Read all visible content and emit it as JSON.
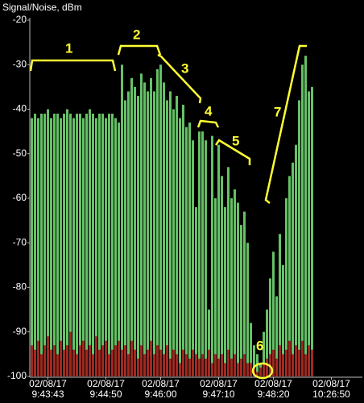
{
  "chart_data": {
    "type": "bar",
    "y_label": "Signal/Noise, dBm",
    "categories": [
      null,
      null,
      null,
      null,
      null,
      "02/08/17 9:43:43",
      null,
      null,
      null,
      null,
      null,
      null,
      null,
      null,
      null,
      null,
      null,
      null,
      null,
      null,
      null,
      null,
      null,
      "02/08/17 9:44:50",
      null,
      null,
      null,
      null,
      null,
      null,
      null,
      null,
      null,
      null,
      null,
      null,
      null,
      null,
      null,
      null,
      "02/08/17 9:46:00",
      null,
      null,
      null,
      null,
      null,
      null,
      null,
      null,
      null,
      null,
      null,
      null,
      null,
      null,
      null,
      null,
      null,
      "02/08/17 9:47:10",
      null,
      null,
      null,
      null,
      null,
      null,
      null,
      null,
      null,
      null,
      null,
      null,
      null,
      null,
      null,
      null,
      "02/08/17 9:48:20",
      null,
      null,
      null,
      null,
      null,
      null,
      null,
      null,
      null,
      null,
      null,
      null,
      null,
      null,
      null,
      null,
      null,
      "02/08/17 10:26:50",
      null,
      null,
      null,
      null,
      null,
      null,
      null,
      null,
      null,
      null
    ],
    "series": [
      {
        "name": "Signal",
        "color": "#66c166",
        "values": [
          -42,
          -41,
          -42,
          -41,
          -41,
          -40,
          -42,
          -41,
          -41,
          -42,
          -41,
          -40,
          -41,
          -42,
          -41,
          -41,
          -42,
          -41,
          -40,
          -41,
          -42,
          -41,
          -41,
          -42,
          -41,
          -41,
          -42,
          -43,
          -30,
          -38,
          -36,
          -33,
          -35,
          -37,
          -32,
          -34,
          -36,
          -33,
          -36,
          -31,
          -30,
          -34,
          -38,
          -36,
          -40,
          -37,
          -42,
          -39,
          -44,
          -43,
          -47,
          -62,
          -45,
          -45,
          -47,
          -85,
          -46,
          -60,
          -48,
          -55,
          -62,
          -53,
          -60,
          -58,
          -61,
          -66,
          -63,
          -70,
          -88,
          -93,
          -95,
          -97,
          -90,
          -85,
          -78,
          -72,
          -82,
          -68,
          -75,
          -60,
          -55,
          -52,
          -48,
          -38,
          -30,
          -28,
          -36,
          -35,
          null,
          null,
          null,
          null,
          null,
          null,
          null,
          null,
          null,
          null,
          null,
          null,
          null,
          null,
          null,
          null
        ]
      },
      {
        "name": "Noise",
        "color": "#9e2a22",
        "values": [
          -93,
          -94,
          -92,
          -95,
          -93,
          -91,
          -94,
          -93,
          -95,
          -92,
          -94,
          -93,
          -90,
          -94,
          -95,
          -93,
          -92,
          -94,
          -93,
          -95,
          -91,
          -94,
          -93,
          -92,
          -95,
          -94,
          -93,
          -92,
          -94,
          -93,
          -95,
          -92,
          -94,
          -96,
          -93,
          -95,
          -94,
          -92,
          -95,
          -93,
          -94,
          -95,
          -93,
          -96,
          -94,
          -95,
          -97,
          -94,
          -95,
          -96,
          -94,
          -95,
          -96,
          -95,
          -96,
          -94,
          -97,
          -95,
          -96,
          -95,
          -97,
          -94,
          -96,
          -95,
          -97,
          -96,
          -95,
          -97,
          -97,
          -98,
          -99,
          -98,
          -97,
          -96,
          -95,
          -94,
          -96,
          -93,
          -95,
          -94,
          -92,
          -95,
          -93,
          -94,
          -92,
          -95,
          -93,
          -94,
          null,
          null,
          null,
          null,
          null,
          null,
          null,
          null,
          null,
          null,
          null,
          null,
          null,
          null,
          null,
          null
        ]
      }
    ],
    "ylim": [
      -100,
      -20
    ],
    "yticks": [
      -20,
      -30,
      -40,
      -50,
      -60,
      -70,
      -80,
      -90,
      -100
    ],
    "annotations": [
      "1",
      "2",
      "3",
      "4",
      "5",
      "6",
      "7"
    ]
  }
}
